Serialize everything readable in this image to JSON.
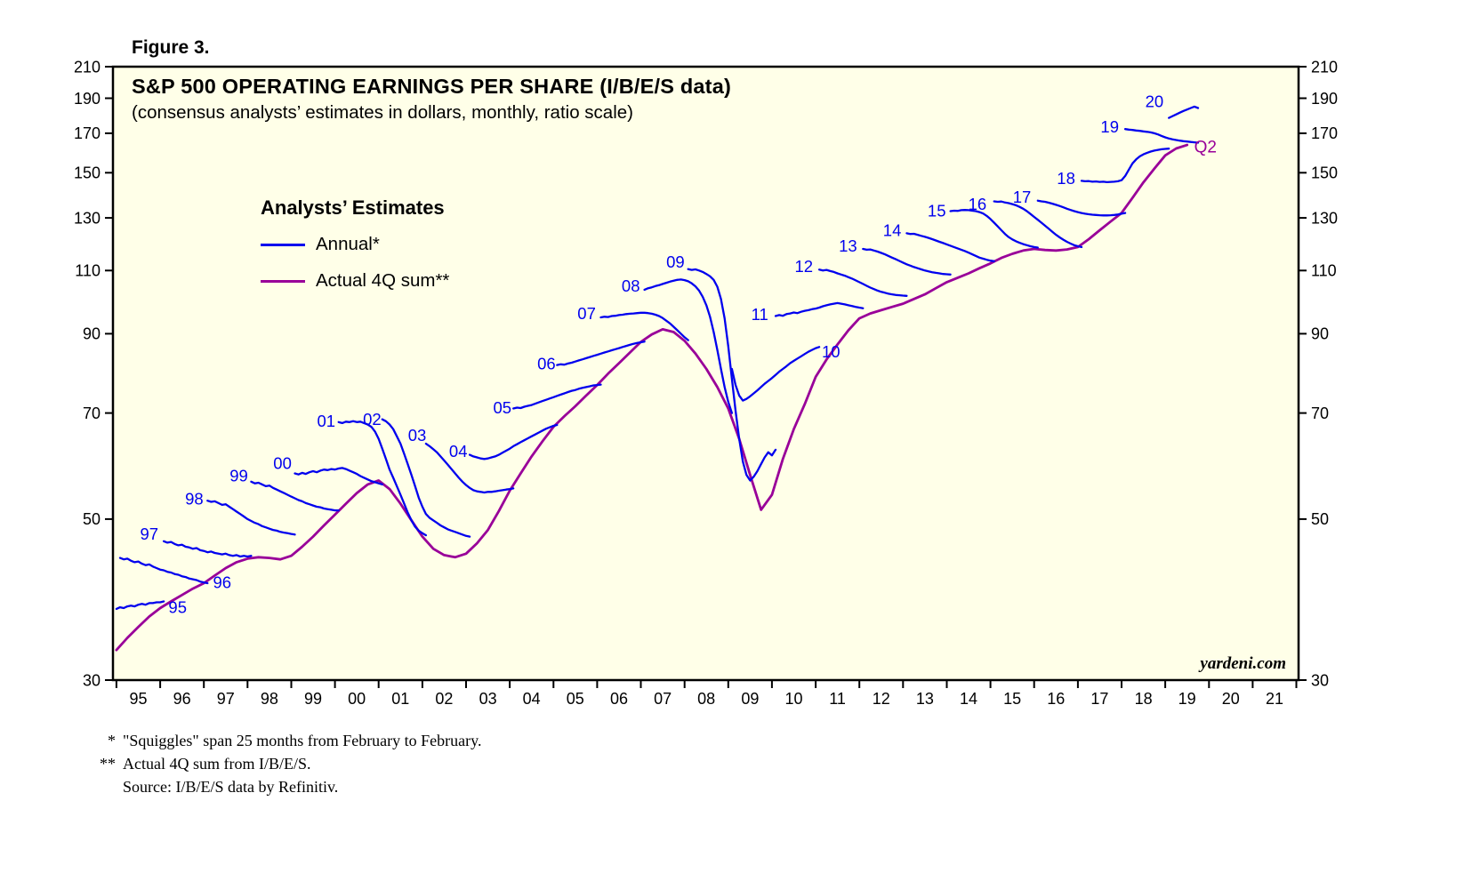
{
  "figure_label": "Figure 3.",
  "chart_data": {
    "type": "line",
    "title": "S&P 500 OPERATING EARNINGS PER SHARE (I/B/E/S data)",
    "subtitle": "(consensus analysts’ estimates in dollars, monthly, ratio scale)",
    "watermark": "yardeni.com",
    "y_scale": "log",
    "ylim": [
      30,
      210
    ],
    "y_ticks": [
      30,
      50,
      70,
      90,
      110,
      130,
      150,
      170,
      190,
      210
    ],
    "x_range": [
      1994.92,
      2022.05
    ],
    "x_boundary_years": [
      1995,
      1996,
      1997,
      1998,
      1999,
      2000,
      2001,
      2002,
      2003,
      2004,
      2005,
      2006,
      2007,
      2008,
      2009,
      2010,
      2011,
      2012,
      2013,
      2014,
      2015,
      2016,
      2017,
      2018,
      2019,
      2020,
      2021,
      2022
    ],
    "x_label_years": [
      1995,
      1996,
      1997,
      1998,
      1999,
      2000,
      2001,
      2002,
      2003,
      2004,
      2005,
      2006,
      2007,
      2008,
      2009,
      2010,
      2011,
      2012,
      2013,
      2014,
      2015,
      2016,
      2017,
      2018,
      2019,
      2020,
      2021
    ],
    "x_labels": [
      "95",
      "96",
      "97",
      "98",
      "99",
      "00",
      "01",
      "02",
      "03",
      "04",
      "05",
      "06",
      "07",
      "08",
      "09",
      "10",
      "11",
      "12",
      "13",
      "14",
      "15",
      "16",
      "17",
      "18",
      "19",
      "20",
      "21"
    ],
    "plot_bg": "#FFFFE8",
    "estimate_color": "#0000EE",
    "actual_color": "#990099",
    "legend": {
      "header": "Analysts’ Estimates",
      "items": [
        {
          "label": "Annual*",
          "color": "#0000EE"
        },
        {
          "label": "Actual 4Q sum**",
          "color": "#990099"
        }
      ]
    },
    "squiggles": [
      {
        "year": "95",
        "start": 1995.0,
        "values": [
          37.6,
          37.8,
          37.7,
          37.9,
          38.0,
          37.9,
          38.1,
          38.2,
          38.1,
          38.3,
          38.3,
          38.4,
          38.4,
          38.5
        ],
        "label": [
          1996.4,
          37.8
        ]
      },
      {
        "year": "96",
        "start": 1995.083,
        "values": [
          44.2,
          44.0,
          44.1,
          43.8,
          43.6,
          43.7,
          43.4,
          43.2,
          43.3,
          43.0,
          42.8,
          42.6,
          42.5,
          42.3,
          42.2,
          42.0,
          41.9,
          41.7,
          41.6,
          41.4,
          41.3,
          41.2,
          41.0,
          40.9,
          40.8
        ],
        "label": [
          1997.42,
          40.9
        ]
      },
      {
        "year": "97",
        "start": 1996.083,
        "values": [
          46.6,
          46.4,
          46.5,
          46.2,
          46.0,
          46.1,
          45.8,
          45.7,
          45.5,
          45.6,
          45.3,
          45.2,
          45.0,
          45.1,
          44.9,
          44.8,
          44.7,
          44.8,
          44.6,
          44.5,
          44.6,
          44.4,
          44.5,
          44.4,
          44.5
        ],
        "label": [
          1995.75,
          47.7
        ]
      },
      {
        "year": "98",
        "start": 1997.083,
        "values": [
          53.0,
          52.8,
          52.9,
          52.6,
          52.3,
          52.4,
          52.0,
          51.6,
          51.2,
          50.8,
          50.4,
          50.0,
          49.7,
          49.4,
          49.2,
          48.9,
          48.7,
          48.5,
          48.3,
          48.2,
          48.0,
          47.9,
          47.8,
          47.7,
          47.6
        ],
        "label": [
          1996.78,
          53.3
        ]
      },
      {
        "year": "99",
        "start": 1998.083,
        "values": [
          56.3,
          56.0,
          56.1,
          55.8,
          55.5,
          55.6,
          55.2,
          54.9,
          54.6,
          54.3,
          54.0,
          53.7,
          53.4,
          53.1,
          52.9,
          52.6,
          52.4,
          52.2,
          52.0,
          51.9,
          51.7,
          51.6,
          51.5,
          51.4,
          51.4
        ],
        "label": [
          1997.8,
          57.4
        ]
      },
      {
        "year": "00",
        "start": 1999.083,
        "values": [
          57.8,
          57.6,
          57.9,
          57.7,
          58.0,
          58.2,
          58.0,
          58.3,
          58.5,
          58.4,
          58.6,
          58.5,
          58.7,
          58.8,
          58.6,
          58.3,
          58.0,
          57.7,
          57.3,
          57.0,
          56.7,
          56.4,
          56.2,
          56.0,
          55.8
        ],
        "label": [
          1998.8,
          59.7
        ]
      },
      {
        "year": "01",
        "start": 2000.083,
        "values": [
          68.0,
          67.8,
          68.1,
          68.0,
          68.2,
          68.0,
          68.1,
          67.8,
          67.5,
          67.0,
          66.0,
          64.5,
          62.5,
          60.5,
          58.5,
          57.0,
          55.5,
          54.0,
          52.5,
          51.0,
          49.8,
          48.8,
          48.2,
          47.8,
          47.5
        ],
        "label": [
          1999.8,
          68.3
        ]
      },
      {
        "year": "02",
        "start": 2001.083,
        "values": [
          68.6,
          68.2,
          67.5,
          66.5,
          65.0,
          63.5,
          61.5,
          59.5,
          57.5,
          55.5,
          53.5,
          52.0,
          50.8,
          50.2,
          49.8,
          49.4,
          49.0,
          48.7,
          48.4,
          48.2,
          48.0,
          47.8,
          47.6,
          47.4,
          47.3
        ],
        "label": [
          2000.85,
          68.6
        ]
      },
      {
        "year": "03",
        "start": 2002.083,
        "values": [
          63.5,
          63.0,
          62.4,
          61.8,
          61.0,
          60.2,
          59.4,
          58.6,
          57.8,
          57.0,
          56.3,
          55.7,
          55.2,
          54.8,
          54.6,
          54.5,
          54.4,
          54.5,
          54.5,
          54.6,
          54.7,
          54.8,
          54.9,
          55.0,
          55.1
        ],
        "label": [
          2001.88,
          65.2
        ]
      },
      {
        "year": "04",
        "start": 2003.083,
        "values": [
          61.3,
          61.0,
          60.8,
          60.6,
          60.5,
          60.6,
          60.8,
          61.0,
          61.3,
          61.7,
          62.1,
          62.5,
          63.0,
          63.4,
          63.8,
          64.2,
          64.6,
          65.0,
          65.4,
          65.8,
          66.2,
          66.6,
          66.9,
          67.2,
          67.4
        ],
        "label": [
          2002.82,
          62.0
        ]
      },
      {
        "year": "05",
        "start": 2004.083,
        "values": [
          71.0,
          71.2,
          71.1,
          71.4,
          71.6,
          71.8,
          72.1,
          72.4,
          72.7,
          73.0,
          73.3,
          73.6,
          73.9,
          74.2,
          74.5,
          74.8,
          75.1,
          75.3,
          75.6,
          75.8,
          76.0,
          76.2,
          76.4,
          76.5,
          76.6
        ],
        "label": [
          2003.83,
          71.2
        ]
      },
      {
        "year": "06",
        "start": 2005.083,
        "values": [
          81.5,
          81.7,
          81.6,
          81.9,
          82.1,
          82.4,
          82.7,
          83.0,
          83.3,
          83.6,
          83.9,
          84.2,
          84.5,
          84.8,
          85.1,
          85.4,
          85.7,
          86.0,
          86.3,
          86.6,
          86.9,
          87.2,
          87.4,
          87.6,
          87.8
        ],
        "label": [
          2004.84,
          81.9
        ]
      },
      {
        "year": "07",
        "start": 2006.083,
        "values": [
          94.8,
          95.0,
          94.9,
          95.2,
          95.3,
          95.5,
          95.6,
          95.8,
          95.9,
          96.0,
          96.1,
          96.2,
          96.2,
          96.1,
          95.9,
          95.6,
          95.2,
          94.6,
          93.8,
          93.0,
          92.0,
          91.0,
          90.0,
          89.0,
          88.2
        ],
        "label": [
          2005.76,
          96.0
        ]
      },
      {
        "year": "08",
        "start": 2007.083,
        "values": [
          103.5,
          104.0,
          104.3,
          104.7,
          105.0,
          105.4,
          105.8,
          106.2,
          106.5,
          106.8,
          106.9,
          106.7,
          106.3,
          105.6,
          104.6,
          103.2,
          101.2,
          98.5,
          95.0,
          90.5,
          85.5,
          80.5,
          76.0,
          72.5,
          70.0
        ],
        "label": [
          2006.77,
          104.8
        ]
      },
      {
        "year": "09",
        "start": 2008.083,
        "values": [
          110.5,
          110.2,
          110.4,
          110.0,
          109.5,
          108.8,
          108.0,
          106.8,
          104.5,
          100.5,
          94.5,
          86.5,
          78.0,
          70.5,
          64.5,
          60.0,
          57.5,
          56.5,
          57.2,
          58.2,
          59.5,
          60.8,
          61.8,
          61.2,
          62.3
        ],
        "label": [
          2007.79,
          113.0
        ]
      },
      {
        "year": "10",
        "start": 2009.083,
        "values": [
          80.5,
          76.5,
          74.0,
          72.8,
          73.2,
          73.8,
          74.5,
          75.2,
          76.0,
          76.8,
          77.5,
          78.2,
          79.0,
          79.8,
          80.5,
          81.2,
          82.0,
          82.6,
          83.2,
          83.8,
          84.4,
          85.0,
          85.5,
          86.0,
          86.3
        ],
        "label": [
          2011.35,
          85.0
        ]
      },
      {
        "year": "11",
        "start": 2010.083,
        "values": [
          95.2,
          95.5,
          95.3,
          95.8,
          96.0,
          96.3,
          96.1,
          96.5,
          96.8,
          97.0,
          97.3,
          97.5,
          97.8,
          98.2,
          98.5,
          98.8,
          99.0,
          99.2,
          99.0,
          98.8,
          98.5,
          98.3,
          98.0,
          97.8,
          97.6
        ],
        "label": [
          2009.72,
          95.8
        ]
      },
      {
        "year": "12",
        "start": 2011.083,
        "values": [
          110.3,
          110.0,
          110.2,
          109.8,
          109.5,
          109.0,
          108.6,
          108.2,
          107.7,
          107.2,
          106.6,
          106.0,
          105.4,
          104.8,
          104.2,
          103.7,
          103.2,
          102.8,
          102.5,
          102.2,
          102.0,
          101.8,
          101.7,
          101.6,
          101.5
        ],
        "label": [
          2010.73,
          111.5
        ]
      },
      {
        "year": "13",
        "start": 2012.083,
        "values": [
          117.8,
          117.5,
          117.6,
          117.2,
          116.8,
          116.3,
          115.8,
          115.2,
          114.6,
          114.0,
          113.4,
          112.8,
          112.2,
          111.7,
          111.2,
          110.8,
          110.4,
          110.0,
          109.7,
          109.4,
          109.2,
          109.0,
          108.8,
          108.7,
          108.6
        ],
        "label": [
          2011.74,
          119.0
        ]
      },
      {
        "year": "14",
        "start": 2013.083,
        "values": [
          123.8,
          123.5,
          123.6,
          123.2,
          122.8,
          122.4,
          122.0,
          121.5,
          121.0,
          120.5,
          120.0,
          119.5,
          119.0,
          118.5,
          118.0,
          117.5,
          117.0,
          116.4,
          115.8,
          115.2,
          114.6,
          114.2,
          113.8,
          113.5,
          113.3
        ],
        "label": [
          2012.75,
          125.0
        ]
      },
      {
        "year": "15",
        "start": 2014.083,
        "values": [
          132.8,
          133.0,
          132.9,
          133.2,
          133.3,
          133.2,
          133.0,
          132.8,
          132.4,
          131.8,
          130.8,
          129.5,
          128.0,
          126.5,
          125.0,
          123.5,
          122.3,
          121.4,
          120.7,
          120.1,
          119.6,
          119.2,
          118.8,
          118.5,
          118.3
        ],
        "label": [
          2013.77,
          133.0
        ]
      },
      {
        "year": "16",
        "start": 2015.083,
        "values": [
          137.0,
          136.8,
          136.9,
          136.5,
          136.2,
          135.8,
          135.3,
          134.6,
          133.8,
          132.8,
          131.6,
          130.4,
          129.2,
          128.0,
          126.8,
          125.6,
          124.4,
          123.2,
          122.2,
          121.3,
          120.5,
          119.8,
          119.2,
          118.8,
          118.5
        ],
        "label": [
          2014.7,
          135.8
        ]
      },
      {
        "year": "17",
        "start": 2016.083,
        "values": [
          137.3,
          137.0,
          136.8,
          136.4,
          136.0,
          135.5,
          135.0,
          134.4,
          133.8,
          133.3,
          132.8,
          132.4,
          132.0,
          131.7,
          131.5,
          131.3,
          131.2,
          131.1,
          131.0,
          131.0,
          131.1,
          131.2,
          131.4,
          131.7,
          132.0
        ],
        "label": [
          2015.72,
          139.0
        ]
      },
      {
        "year": "18",
        "start": 2017.083,
        "values": [
          146.2,
          146.0,
          146.1,
          145.8,
          145.9,
          145.7,
          145.8,
          145.6,
          145.7,
          145.8,
          146.0,
          146.5,
          148.5,
          151.5,
          154.5,
          156.5,
          158.0,
          159.0,
          159.8,
          160.4,
          160.9,
          161.3,
          161.6,
          161.8,
          161.9
        ],
        "label": [
          2016.73,
          147.5
        ]
      },
      {
        "year": "19",
        "start": 2018.083,
        "values": [
          172.3,
          172.0,
          171.8,
          171.5,
          171.3,
          171.0,
          170.8,
          170.5,
          170.0,
          169.4,
          168.6,
          167.8,
          167.2,
          166.8,
          166.4,
          166.1,
          165.8,
          165.6,
          165.4,
          165.2,
          165.0
        ],
        "label": [
          2017.73,
          173.5
        ]
      },
      {
        "year": "20",
        "start": 2019.083,
        "values": [
          178.5,
          179.5,
          180.5,
          181.5,
          182.5,
          183.3,
          184.2,
          185.0,
          184.2
        ],
        "label": [
          2018.75,
          188.0
        ]
      }
    ],
    "actual_4q_sum": {
      "start": 1995.0,
      "step": 0.25,
      "values": [
        33.0,
        34.3,
        35.5,
        36.7,
        37.7,
        38.5,
        39.3,
        40.1,
        40.8,
        41.8,
        42.8,
        43.6,
        44.1,
        44.3,
        44.2,
        44.0,
        44.5,
        45.8,
        47.3,
        49.0,
        50.7,
        52.5,
        54.3,
        55.8,
        56.5,
        55.0,
        52.5,
        49.8,
        47.3,
        45.5,
        44.6,
        44.3,
        44.8,
        46.3,
        48.3,
        51.3,
        54.7,
        57.8,
        61.0,
        64.0,
        67.0,
        69.3,
        71.5,
        74.0,
        76.5,
        79.3,
        82.0,
        84.8,
        87.7,
        89.8,
        91.3,
        90.5,
        88.0,
        84.5,
        80.5,
        76.0,
        71.0,
        64.5,
        57.5,
        51.5,
        54.0,
        60.5,
        66.5,
        72.0,
        78.5,
        83.0,
        87.0,
        91.0,
        94.5,
        96.0,
        97.0,
        98.0,
        99.0,
        100.5,
        102.0,
        104.0,
        106.0,
        107.5,
        109.0,
        110.8,
        112.5,
        114.5,
        116.0,
        117.2,
        117.8,
        117.4,
        117.2,
        117.6,
        118.5,
        121.5,
        125.0,
        128.5,
        132.0,
        138.5,
        145.5,
        152.0,
        158.5,
        162.0,
        163.8
      ],
      "end_label": {
        "text": "Q2",
        "x": 2019.66,
        "y": 163.0
      }
    }
  },
  "footnotes": [
    {
      "mark": "*",
      "text": "\"Squiggles\" span 25 months from February to February."
    },
    {
      "mark": "**",
      "text": "Actual 4Q sum from I/B/E/S."
    },
    {
      "mark": "",
      "text": "Source: I/B/E/S data by Refinitiv."
    }
  ]
}
